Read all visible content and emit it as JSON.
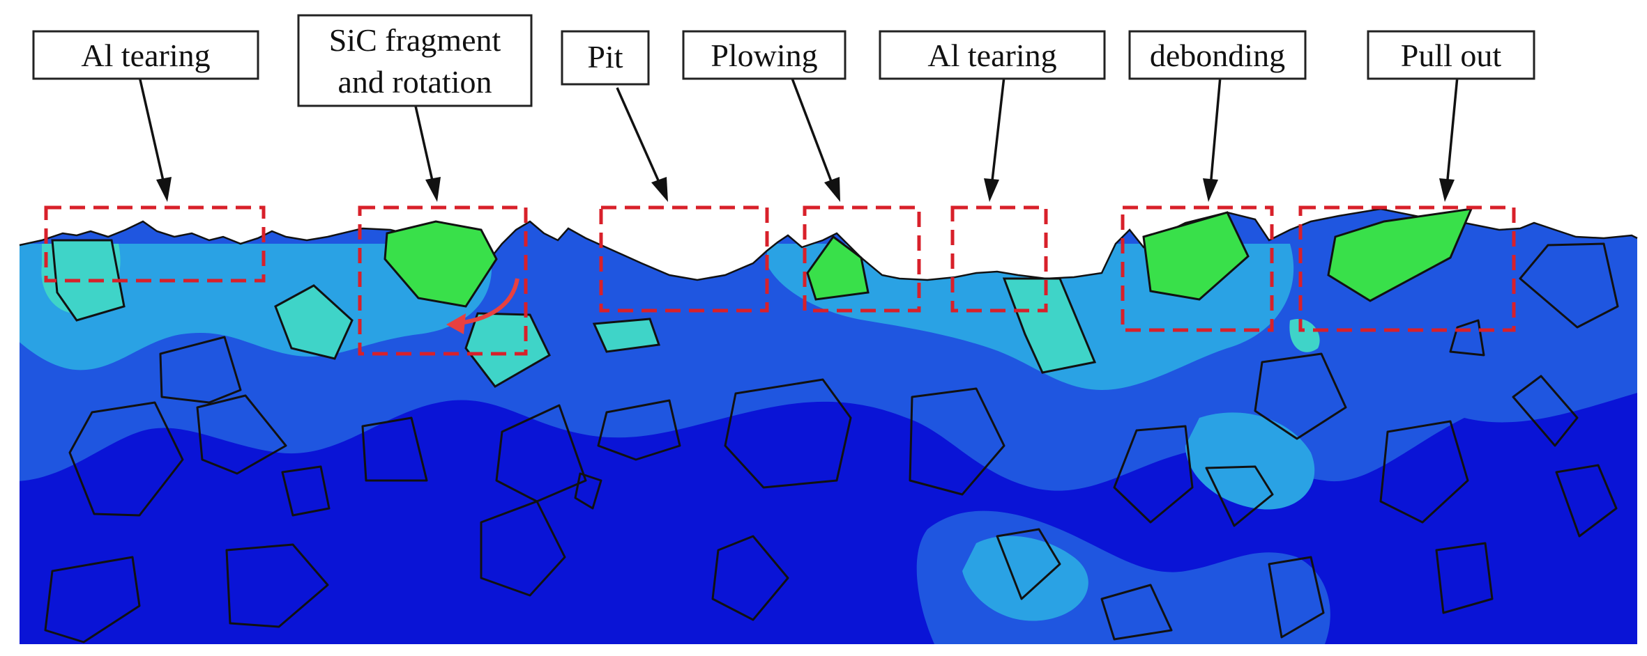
{
  "labels": {
    "al_tearing_1": "Al tearing",
    "sic_fragment_line1": "SiC fragment",
    "sic_fragment_line2": "and rotation",
    "pit": "Pit",
    "plowing": "Plowing",
    "al_tearing_2": "Al tearing",
    "debonding": "debonding",
    "pull_out": "Pull out"
  },
  "colors": {
    "matrix_dark_blue": "#0a14d6",
    "matrix_blue": "#1f56e0",
    "matrix_light_blue": "#2aa2e4",
    "matrix_cyan": "#3fd4c8",
    "particle_green": "#39e04a",
    "particle_yellow_green": "#b8e83a",
    "highlight_box": "#d8202a",
    "rotation_arrow": "#e84040"
  }
}
